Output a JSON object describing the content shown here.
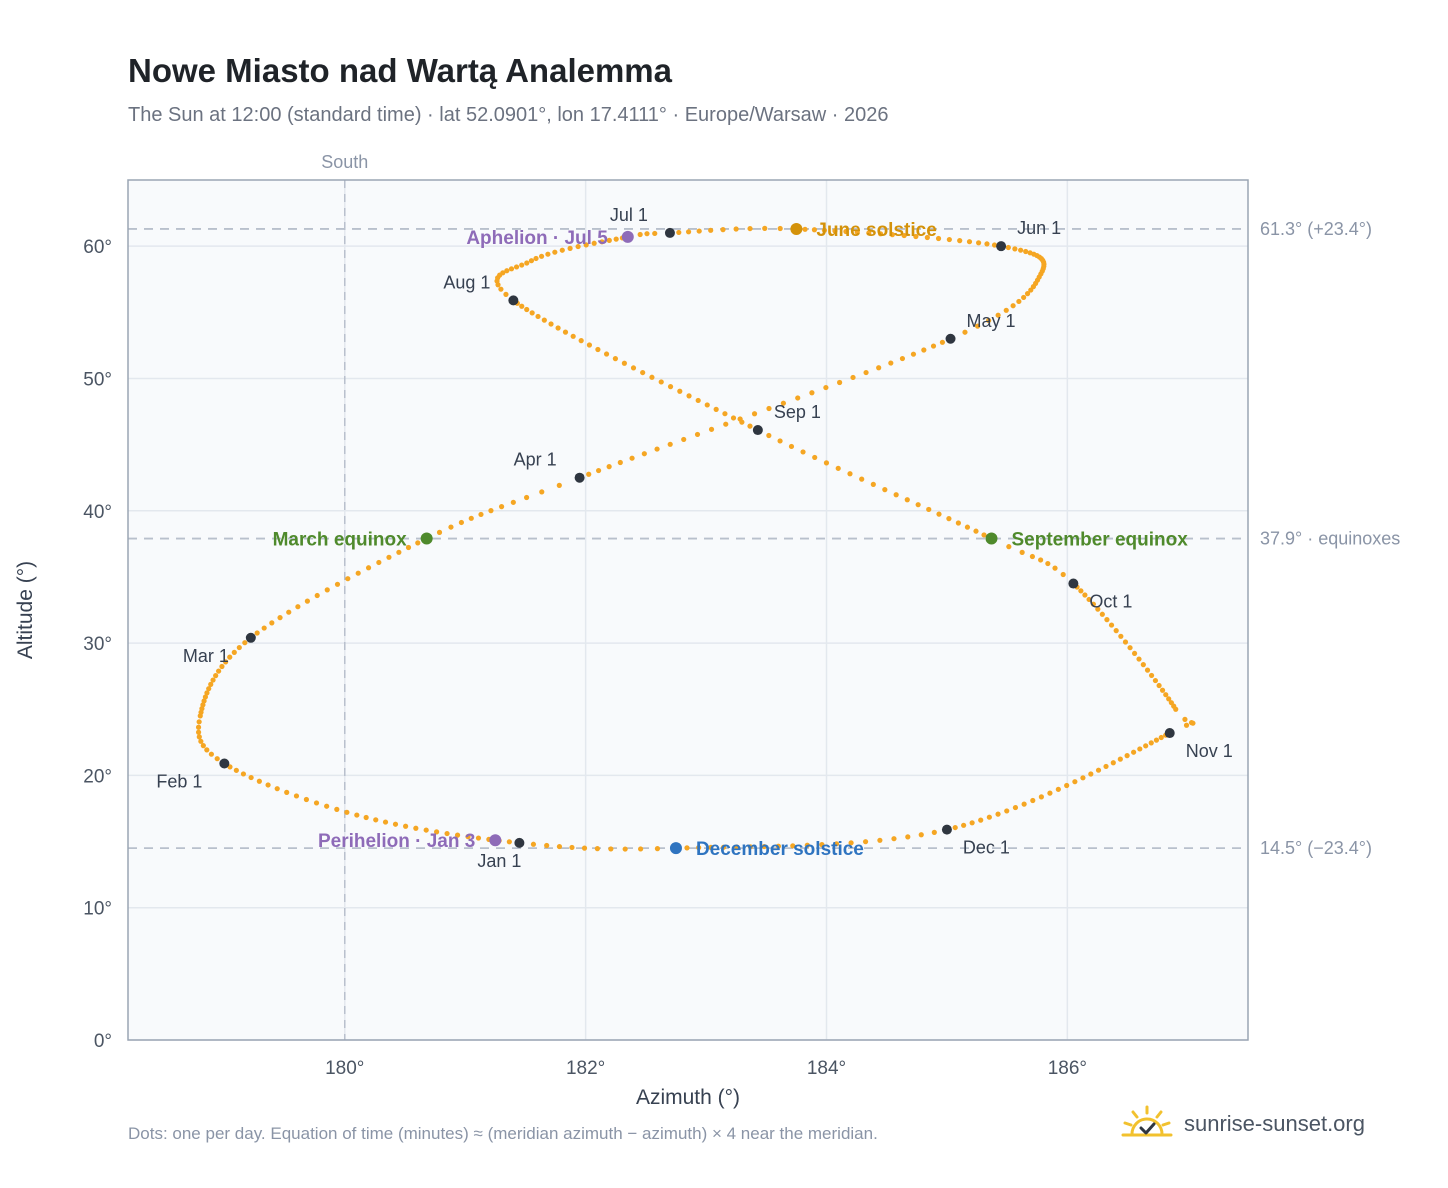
{
  "title": "Nowe Miasto nad Wartą Analemma",
  "subtitle": "The Sun at 12:00 (standard time) · lat 52.0901°, lon 17.4111° · Europe/Warsaw · 2026",
  "footnote": "Dots: one per day. Equation of time (minutes) ≈ (meridian azimuth − azimuth) × 4 near the meridian.",
  "brand": {
    "text": "sunrise-sunset.org",
    "logo_icon": "sun-check-logo"
  },
  "colors": {
    "curve": "#f5a623",
    "month_dot": "#2f3640",
    "june_solstice": "#d4920a",
    "december_solstice": "#2f74c0",
    "equinox": "#4f8a2c",
    "apsis": "#8e6bb8",
    "reference_line": "#b8c0cc",
    "plot_background": "#f8fafc",
    "plot_border": "#9aa5b4"
  },
  "chart_data": {
    "type": "scatter",
    "title": "Nowe Miasto nad Wartą Analemma",
    "xlabel": "Azimuth (°)",
    "ylabel": "Altitude (°)",
    "xlim": [
      178.2,
      187.5
    ],
    "ylim": [
      0,
      65
    ],
    "x_ticks": [
      180,
      182,
      184,
      186
    ],
    "x_tick_labels": [
      "180°",
      "182°",
      "184°",
      "186°"
    ],
    "y_ticks": [
      0,
      10,
      20,
      30,
      40,
      50,
      60
    ],
    "y_tick_labels": [
      "0°",
      "10°",
      "20°",
      "30°",
      "40°",
      "50°",
      "60°"
    ],
    "grid": true,
    "meridian": {
      "azimuth": 180,
      "label": "South"
    },
    "reference_lines": [
      {
        "altitude": 61.3,
        "label": "61.3° (+23.4°)"
      },
      {
        "altitude": 37.9,
        "label": "37.9° · equinoxes"
      },
      {
        "altitude": 14.5,
        "label": "14.5° (−23.4°)"
      }
    ],
    "months": [
      {
        "label": "Jan 1",
        "azimuth": 181.45,
        "altitude": 14.9
      },
      {
        "label": "Feb 1",
        "azimuth": 179.0,
        "altitude": 20.9
      },
      {
        "label": "Mar 1",
        "azimuth": 179.22,
        "altitude": 30.4
      },
      {
        "label": "Apr 1",
        "azimuth": 181.95,
        "altitude": 42.5
      },
      {
        "label": "May 1",
        "azimuth": 185.03,
        "altitude": 53.0
      },
      {
        "label": "Jun 1",
        "azimuth": 185.45,
        "altitude": 60.0
      },
      {
        "label": "Jul 1",
        "azimuth": 182.7,
        "altitude": 61.0
      },
      {
        "label": "Aug 1",
        "azimuth": 181.4,
        "altitude": 55.9
      },
      {
        "label": "Sep 1",
        "azimuth": 183.43,
        "altitude": 46.1
      },
      {
        "label": "Oct 1",
        "azimuth": 186.05,
        "altitude": 34.5
      },
      {
        "label": "Nov 1",
        "azimuth": 186.85,
        "altitude": 23.2
      },
      {
        "label": "Dec 1",
        "azimuth": 185.0,
        "altitude": 15.9
      }
    ],
    "events": [
      {
        "label": "June solstice",
        "azimuth": 183.75,
        "altitude": 61.3,
        "color": "#d4920a",
        "label_side": "right"
      },
      {
        "label": "December solstice",
        "azimuth": 182.75,
        "altitude": 14.5,
        "color": "#2f74c0",
        "label_side": "right"
      },
      {
        "label": "March equinox",
        "azimuth": 180.68,
        "altitude": 37.9,
        "color": "#4f8a2c",
        "label_side": "left"
      },
      {
        "label": "September equinox",
        "azimuth": 185.37,
        "altitude": 37.9,
        "color": "#4f8a2c",
        "label_side": "right"
      },
      {
        "label": "Aphelion · Jul 5",
        "azimuth": 182.35,
        "altitude": 60.7,
        "color": "#8e6bb8",
        "label_side": "left"
      },
      {
        "label": "Perihelion · Jan 3",
        "azimuth": 181.25,
        "altitude": 15.1,
        "color": "#8e6bb8",
        "label_side": "left"
      }
    ],
    "curve_anchors": [
      {
        "day": 1,
        "azimuth": 181.45,
        "altitude": 14.9
      },
      {
        "day": 17,
        "azimuth": 180.1,
        "altitude": 17.0
      },
      {
        "day": 32,
        "azimuth": 179.0,
        "altitude": 20.9
      },
      {
        "day": 42,
        "azimuth": 178.8,
        "altitude": 24.5
      },
      {
        "day": 60,
        "azimuth": 179.22,
        "altitude": 30.4
      },
      {
        "day": 79,
        "azimuth": 180.68,
        "altitude": 37.9
      },
      {
        "day": 91,
        "azimuth": 181.95,
        "altitude": 42.5
      },
      {
        "day": 121,
        "azimuth": 185.03,
        "altitude": 53.0
      },
      {
        "day": 136,
        "azimuth": 185.78,
        "altitude": 57.9
      },
      {
        "day": 152,
        "azimuth": 185.45,
        "altitude": 60.0
      },
      {
        "day": 172,
        "azimuth": 183.75,
        "altitude": 61.3
      },
      {
        "day": 182,
        "azimuth": 182.7,
        "altitude": 61.0
      },
      {
        "day": 186,
        "azimuth": 182.35,
        "altitude": 60.7
      },
      {
        "day": 200,
        "azimuth": 181.55,
        "altitude": 58.9
      },
      {
        "day": 213,
        "azimuth": 181.4,
        "altitude": 55.9
      },
      {
        "day": 244,
        "azimuth": 183.43,
        "altitude": 46.1
      },
      {
        "day": 266,
        "azimuth": 185.37,
        "altitude": 37.9
      },
      {
        "day": 274,
        "azimuth": 186.05,
        "altitude": 34.5
      },
      {
        "day": 300,
        "azimuth": 186.9,
        "altitude": 25.0
      },
      {
        "day": 305,
        "azimuth": 186.85,
        "altitude": 23.2
      },
      {
        "day": 335,
        "azimuth": 185.0,
        "altitude": 15.9
      },
      {
        "day": 355,
        "azimuth": 182.75,
        "altitude": 14.5
      },
      {
        "day": 366,
        "azimuth": 181.45,
        "altitude": 14.9
      }
    ]
  }
}
